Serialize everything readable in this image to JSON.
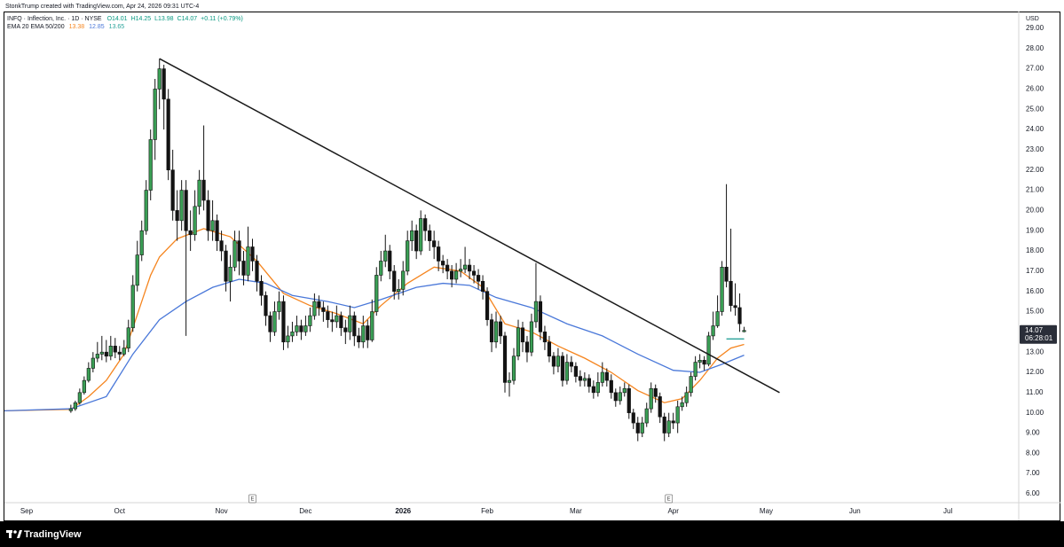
{
  "header": {
    "credit": "StonkTrump created with TradingView.com, Apr 24, 2026 09:31 UTC-4"
  },
  "footer": {
    "brand": "TradingView"
  },
  "chart_data": {
    "type": "candlestick",
    "symbol": "INFQ · Inflection, Inc. · 1D · NYSE",
    "ohlc_readout": [
      "O14.01",
      "H14.25",
      "L13.98",
      "C14.07",
      "+0.11 (+0.79%)"
    ],
    "indicator_label": "EMA 20 EMA 50/200",
    "currency": "USD",
    "x": [
      15,
      16,
      17,
      18,
      19,
      20,
      21,
      22,
      23,
      24,
      25,
      26,
      27,
      28,
      29,
      30,
      31,
      32,
      33,
      34,
      35,
      36,
      37,
      38,
      39,
      40,
      41,
      42,
      43,
      44,
      45,
      46,
      47,
      48,
      49,
      50,
      51,
      52,
      53,
      54,
      55,
      56,
      57,
      58,
      59,
      60,
      61,
      62,
      63,
      64,
      65,
      66,
      67,
      68,
      69,
      70,
      71,
      72,
      73,
      74,
      75,
      76,
      77,
      78,
      79,
      80,
      81,
      82,
      83,
      84,
      85,
      86,
      87,
      88,
      89,
      90,
      91,
      92,
      93,
      94,
      95,
      96,
      97,
      98,
      99,
      100,
      101,
      102,
      103,
      104,
      105,
      106,
      107,
      108,
      109,
      110,
      111,
      112,
      113,
      114,
      115,
      116,
      117,
      118,
      119,
      120,
      121,
      122,
      123,
      124,
      125,
      126,
      127,
      128,
      129,
      130,
      131,
      132,
      133,
      134,
      135,
      136,
      137,
      138,
      139,
      140,
      141,
      142,
      143,
      144,
      145,
      146,
      147,
      148,
      149,
      150,
      151,
      152,
      153,
      154,
      155,
      156,
      157,
      158,
      159,
      160,
      161,
      162,
      163,
      164,
      165,
      166,
      167
    ],
    "open": [
      10.1,
      10.2,
      10.5,
      11.0,
      11.6,
      12.2,
      12.7,
      12.9,
      13.0,
      12.8,
      13.3,
      13.0,
      12.9,
      13.2,
      14.2,
      16.3,
      17.8,
      19.0,
      21.0,
      23.5,
      26.0,
      27.0,
      25.5,
      22.0,
      20.0,
      19.5,
      21.0,
      19.0,
      18.8,
      20.2,
      21.5,
      20.5,
      19.0,
      19.5,
      18.5,
      18.0,
      16.5,
      17.2,
      18.5,
      17.5,
      16.8,
      18.2,
      17.5,
      16.5,
      15.8,
      14.8,
      14.0,
      15.0,
      15.5,
      13.5,
      13.8,
      14.0,
      14.3,
      14.0,
      14.3,
      14.8,
      15.5,
      15.2,
      15.0,
      14.6,
      14.5,
      14.8,
      14.2,
      14.0,
      14.8,
      13.8,
      13.5,
      14.3,
      13.6,
      15.0,
      16.8,
      17.5,
      18.0,
      17.0,
      16.0,
      16.1,
      17.0,
      18.5,
      19.0,
      18.0,
      19.6,
      19.0,
      18.5,
      18.2,
      17.5,
      17.3,
      17.0,
      16.6,
      17.0,
      17.1,
      17.3,
      17.0,
      16.8,
      16.5,
      16.0,
      14.6,
      13.5,
      14.5,
      13.8,
      11.5,
      11.6,
      12.8,
      14.2,
      13.5,
      13.0,
      14.5,
      15.5,
      14.0,
      13.5,
      12.8,
      12.3,
      12.8,
      11.6,
      12.5,
      12.3,
      11.8,
      11.6,
      11.7,
      11.3,
      11.0,
      11.5,
      12.0,
      11.6,
      11.0,
      10.6,
      11.0,
      11.2,
      10.0,
      9.5,
      9.0,
      9.5,
      10.2,
      11.2,
      10.8,
      9.8,
      9.0,
      9.6,
      9.5,
      10.3,
      10.5,
      11.0,
      11.8,
      12.5,
      12.6,
      12.4,
      13.8,
      14.3,
      15.0,
      17.2,
      16.5,
      15.3,
      15.2,
      14.01
    ],
    "high": [
      10.4,
      10.6,
      11.2,
      11.8,
      12.5,
      13.0,
      13.5,
      13.8,
      13.6,
      13.8,
      13.7,
      13.3,
      13.6,
      14.6,
      16.8,
      18.5,
      19.5,
      21.5,
      24.0,
      26.5,
      27.5,
      27.2,
      26.0,
      23.0,
      21.0,
      21.5,
      21.5,
      20.0,
      21.0,
      22.0,
      24.2,
      21.0,
      20.5,
      19.8,
      19.0,
      18.3,
      17.8,
      19.0,
      19.0,
      18.0,
      19.2,
      18.6,
      17.8,
      16.8,
      16.0,
      15.0,
      15.5,
      16.0,
      15.8,
      14.3,
      14.5,
      14.8,
      14.6,
      14.8,
      15.2,
      15.9,
      15.8,
      15.5,
      15.3,
      15.0,
      15.3,
      15.0,
      14.6,
      15.3,
      15.0,
      14.2,
      14.8,
      14.6,
      15.6,
      17.2,
      18.0,
      18.8,
      18.3,
      17.3,
      16.6,
      17.5,
      19.0,
      19.5,
      19.3,
      20.0,
      19.8,
      19.3,
      19.0,
      18.5,
      17.8,
      17.6,
      17.3,
      17.4,
      17.6,
      18.2,
      17.6,
      17.3,
      17.1,
      16.8,
      16.2,
      14.9,
      15.0,
      14.8,
      14.0,
      12.0,
      13.2,
      14.6,
      14.5,
      13.8,
      14.9,
      17.4,
      15.8,
      14.3,
      13.8,
      13.0,
      13.2,
      13.0,
      12.9,
      12.8,
      12.5,
      12.1,
      12.0,
      11.9,
      11.6,
      12.0,
      12.5,
      12.2,
      11.9,
      11.2,
      11.3,
      11.5,
      11.4,
      10.2,
      9.8,
      9.8,
      10.5,
      11.5,
      11.4,
      11.0,
      10.0,
      10.0,
      10.0,
      10.6,
      10.8,
      11.3,
      12.0,
      12.8,
      12.9,
      12.8,
      14.0,
      15.0,
      15.8,
      17.5,
      21.3,
      19.1,
      16.4,
      15.9,
      14.25
    ],
    "low": [
      10.0,
      10.1,
      10.4,
      10.9,
      11.5,
      12.0,
      12.5,
      12.6,
      12.5,
      12.6,
      12.7,
      12.6,
      12.8,
      13.0,
      14.0,
      16.0,
      17.5,
      18.8,
      20.5,
      22.5,
      25.0,
      24.0,
      21.5,
      19.5,
      18.5,
      19.0,
      13.8,
      18.0,
      18.5,
      19.8,
      20.0,
      18.5,
      18.5,
      18.0,
      17.5,
      16.0,
      15.5,
      17.0,
      16.8,
      16.3,
      16.5,
      17.0,
      16.0,
      15.3,
      14.3,
      13.5,
      13.8,
      14.6,
      13.1,
      13.2,
      13.5,
      13.8,
      13.6,
      13.8,
      14.0,
      14.6,
      14.8,
      14.5,
      14.2,
      14.0,
      14.2,
      13.8,
      13.4,
      13.6,
      13.3,
      13.2,
      13.2,
      13.2,
      13.5,
      14.8,
      16.5,
      17.2,
      16.6,
      15.6,
      15.6,
      15.8,
      16.8,
      18.0,
      17.6,
      17.8,
      18.5,
      18.0,
      17.6,
      17.0,
      16.9,
      16.6,
      16.2,
      16.4,
      16.7,
      16.9,
      16.6,
      16.4,
      16.1,
      15.6,
      14.3,
      13.0,
      13.2,
      13.4,
      11.0,
      10.8,
      11.4,
      12.6,
      13.0,
      12.5,
      12.8,
      14.2,
      13.6,
      13.1,
      12.5,
      11.9,
      12.0,
      11.3,
      11.4,
      12.0,
      11.5,
      11.3,
      11.3,
      11.0,
      10.7,
      10.8,
      11.3,
      11.3,
      10.7,
      10.3,
      10.4,
      10.8,
      9.7,
      9.2,
      8.6,
      8.8,
      9.3,
      10.0,
      10.5,
      9.5,
      8.6,
      8.8,
      9.2,
      9.0,
      10.1,
      10.3,
      10.8,
      11.6,
      12.2,
      12.1,
      12.3,
      13.6,
      14.2,
      14.8,
      16.2,
      15.0,
      14.8,
      14.0,
      13.98
    ],
    "close": [
      10.2,
      10.5,
      11.0,
      11.6,
      12.2,
      12.7,
      12.9,
      13.0,
      12.8,
      13.3,
      13.0,
      12.9,
      13.2,
      14.2,
      16.3,
      17.8,
      19.0,
      21.0,
      23.5,
      26.0,
      27.0,
      25.5,
      22.0,
      20.0,
      19.5,
      21.0,
      19.0,
      18.8,
      20.2,
      21.5,
      20.5,
      19.0,
      19.5,
      18.5,
      18.0,
      16.5,
      17.2,
      18.5,
      17.5,
      16.8,
      18.2,
      17.5,
      16.5,
      15.8,
      14.8,
      14.0,
      15.0,
      15.5,
      13.5,
      13.8,
      14.0,
      14.3,
      14.0,
      14.3,
      14.8,
      15.5,
      15.2,
      15.0,
      14.6,
      14.5,
      14.8,
      14.2,
      14.0,
      14.8,
      13.8,
      13.5,
      14.3,
      13.6,
      15.0,
      16.8,
      17.5,
      18.0,
      17.0,
      16.0,
      16.1,
      17.0,
      18.5,
      19.0,
      18.0,
      19.6,
      19.0,
      18.5,
      18.2,
      17.5,
      17.3,
      17.0,
      16.6,
      17.0,
      17.1,
      17.3,
      17.0,
      16.8,
      16.5,
      16.0,
      14.6,
      13.5,
      14.5,
      13.8,
      11.5,
      11.6,
      12.8,
      14.2,
      13.5,
      13.0,
      14.5,
      15.5,
      14.0,
      13.5,
      12.8,
      12.3,
      12.8,
      11.6,
      12.5,
      12.3,
      11.8,
      11.6,
      11.7,
      11.3,
      11.0,
      11.5,
      12.0,
      11.6,
      11.0,
      10.6,
      11.0,
      11.2,
      10.0,
      9.5,
      9.0,
      9.5,
      10.2,
      11.2,
      10.8,
      9.8,
      9.0,
      9.6,
      9.5,
      10.3,
      10.5,
      11.0,
      11.8,
      12.5,
      12.6,
      12.4,
      13.8,
      14.3,
      15.0,
      17.2,
      16.5,
      15.3,
      15.2,
      14.4,
      14.07
    ],
    "up_color": "#3a9f55",
    "down_color": "#131313",
    "series": [
      {
        "color": "#f5851f",
        "value_label": "13.38",
        "x": [
          0,
          15,
          19,
          23,
          27,
          31,
          33,
          35,
          39,
          45,
          51,
          57,
          63,
          69,
          75,
          81,
          85,
          91,
          97,
          103,
          108,
          113,
          119,
          125,
          131,
          137,
          143,
          149,
          153,
          157,
          161,
          164,
          167
        ],
        "values": [
          10.1,
          10.17,
          10.8,
          11.6,
          12.9,
          15.5,
          16.8,
          17.7,
          18.6,
          19.1,
          18.7,
          17.5,
          15.9,
          15.3,
          14.9,
          14.4,
          15.3,
          16.4,
          17.2,
          17.0,
          16.2,
          14.4,
          14.0,
          13.3,
          12.7,
          12.0,
          11.1,
          10.5,
          10.7,
          11.6,
          12.7,
          13.2,
          13.38
        ]
      },
      {
        "color": "#4a78d9",
        "value_label": "12.85",
        "x": [
          0,
          15,
          23,
          29,
          35,
          41,
          47,
          53,
          59,
          65,
          73,
          79,
          85,
          93,
          99,
          105,
          111,
          119,
          127,
          135,
          143,
          151,
          157,
          162,
          167
        ],
        "values": [
          10.1,
          10.2,
          10.8,
          12.9,
          14.6,
          15.5,
          16.2,
          16.6,
          16.4,
          15.8,
          15.5,
          15.2,
          15.6,
          16.2,
          16.4,
          16.3,
          15.7,
          15.2,
          14.4,
          13.8,
          12.9,
          12.1,
          12.0,
          12.4,
          12.85
        ]
      },
      {
        "color": "#2aa39a",
        "value_label": "13.65",
        "x": [
          163,
          167
        ],
        "values": [
          13.65,
          13.65
        ]
      }
    ],
    "trendline": {
      "x": [
        35,
        175
      ],
      "values": [
        27.5,
        11.0
      ],
      "color": "#1a1a1a"
    },
    "events": [
      {
        "x": 56,
        "label": "E"
      },
      {
        "x": 150,
        "label": "E"
      }
    ],
    "last_price_label": "14.07",
    "countdown": "06:28:01",
    "xlim": [
      0,
      229
    ],
    "xticks": [
      {
        "value": 5,
        "label": "Sep"
      },
      {
        "value": 26,
        "label": "Oct"
      },
      {
        "value": 49,
        "label": "Nov"
      },
      {
        "value": 68,
        "label": "Dec"
      },
      {
        "value": 90,
        "label": "2026"
      },
      {
        "value": 109,
        "label": "Feb"
      },
      {
        "value": 129,
        "label": "Mar"
      },
      {
        "value": 151,
        "label": "Apr"
      },
      {
        "value": 172,
        "label": "May"
      },
      {
        "value": 192,
        "label": "Jun"
      },
      {
        "value": 213,
        "label": "Jul"
      }
    ],
    "ylim": [
      5.56,
      29.83
    ],
    "yticks": [
      {
        "value": 6,
        "label": "6.00"
      },
      {
        "value": 7,
        "label": "7.00"
      },
      {
        "value": 8,
        "label": "8.00"
      },
      {
        "value": 9,
        "label": "9.00"
      },
      {
        "value": 10,
        "label": "10.00"
      },
      {
        "value": 11,
        "label": "11.00"
      },
      {
        "value": 12,
        "label": "12.00"
      },
      {
        "value": 13,
        "label": "13.00"
      },
      {
        "value": 14,
        "label": "14.00"
      },
      {
        "value": 15,
        "label": "15.00"
      },
      {
        "value": 16,
        "label": "16.00"
      },
      {
        "value": 17,
        "label": "17.00"
      },
      {
        "value": 18,
        "label": "18.00"
      },
      {
        "value": 19,
        "label": "19.00"
      },
      {
        "value": 20,
        "label": "20.00"
      },
      {
        "value": 21,
        "label": "21.00"
      },
      {
        "value": 22,
        "label": "22.00"
      },
      {
        "value": 23,
        "label": "23.00"
      },
      {
        "value": 24,
        "label": "24.00"
      },
      {
        "value": 25,
        "label": "25.00"
      },
      {
        "value": 26,
        "label": "26.00"
      },
      {
        "value": 27,
        "label": "27.00"
      },
      {
        "value": 28,
        "label": "28.00"
      },
      {
        "value": 29,
        "label": "29.00"
      }
    ],
    "grid": false
  }
}
